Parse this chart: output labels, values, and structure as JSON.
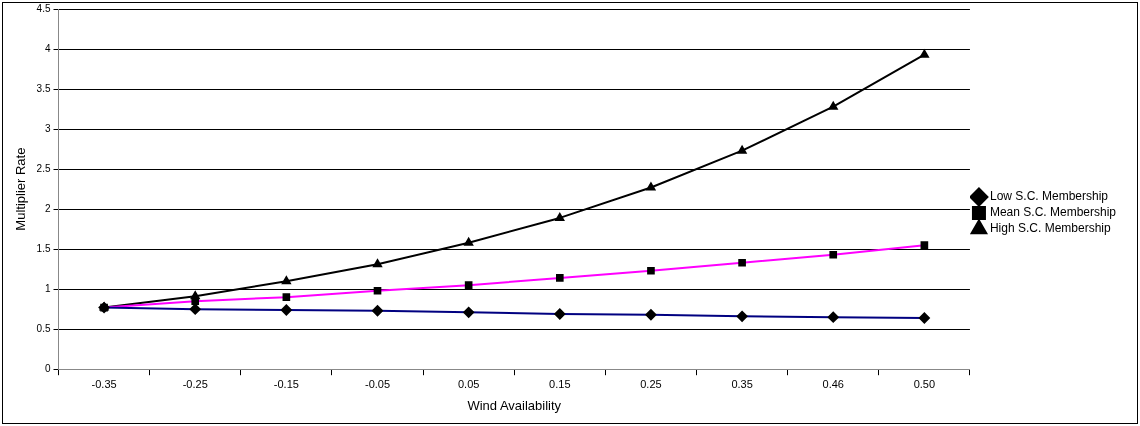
{
  "chart_data": {
    "type": "line",
    "xlabel": "Wind Availability",
    "ylabel": "Multiplier Rate",
    "categories": [
      "-0.35",
      "-0.25",
      "-0.15",
      "-0.05",
      "0.05",
      "0.15",
      "0.25",
      "0.35",
      "0.46",
      "0.50"
    ],
    "series": [
      {
        "name": "Low S.C. Membership",
        "color": "#000080",
        "marker": "diamond",
        "values": [
          0.77,
          0.75,
          0.74,
          0.73,
          0.71,
          0.69,
          0.68,
          0.66,
          0.65,
          0.64
        ]
      },
      {
        "name": "Mean S.C. Membership",
        "color": "#ff00ff",
        "marker": "square",
        "values": [
          0.77,
          0.85,
          0.9,
          0.98,
          1.05,
          1.14,
          1.23,
          1.33,
          1.43,
          1.55
        ]
      },
      {
        "name": "High S.C. Membership",
        "color": "#000000",
        "marker": "triangle",
        "values": [
          0.77,
          0.91,
          1.1,
          1.31,
          1.58,
          1.89,
          2.27,
          2.73,
          3.28,
          3.93
        ]
      }
    ],
    "ylim": [
      0,
      4.5
    ],
    "yticks": [
      0,
      0.5,
      1,
      1.5,
      2,
      2.5,
      3,
      3.5,
      4,
      4.5
    ],
    "grid": "y",
    "legend": "right",
    "line_style": "solid"
  }
}
